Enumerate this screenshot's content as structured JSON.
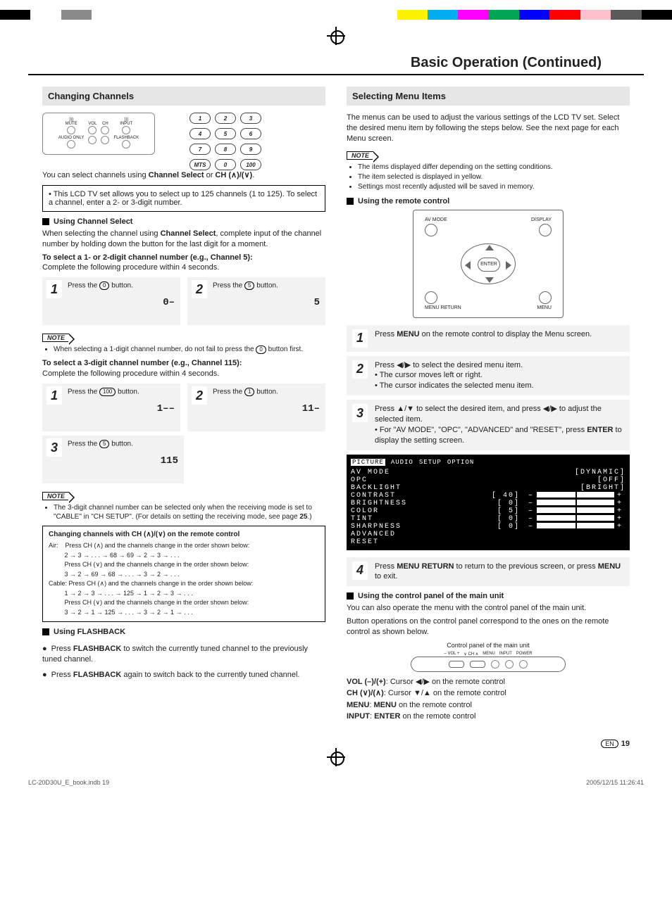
{
  "colorbar": [
    "#000000",
    "#ffffff",
    "#8a8a8a",
    "#ffffff",
    "#ffffff",
    "#ffffff",
    "#ffffff",
    "#ffffff",
    "#ffffff",
    "#ffffff",
    "#ffffff",
    "#ffffff",
    "#ffffff",
    "#fff200",
    "#00aeef",
    "#ff00ff",
    "#00a651",
    "#0000ff",
    "#ff0000",
    "#ffc0cb",
    "#5a5a5a",
    "#000000"
  ],
  "page_title": "Basic Operation (Continued)",
  "left": {
    "section": "Changing Channels",
    "panel_labels": [
      "MUTE",
      "VOL",
      "CH",
      "INPUT",
      "AUDIO ONLY",
      "FLASHBACK"
    ],
    "keypad": [
      "1",
      "2",
      "3",
      "4",
      "5",
      "6",
      "7",
      "8",
      "9",
      "MTS",
      "0",
      "100"
    ],
    "intro_a": "You can select channels using ",
    "intro_b": "Channel Select",
    "intro_c": " or ",
    "intro_d": "CH (∧)/(∨)",
    "intro_e": ".",
    "box1": "•  This LCD TV set allows you to select up to 125 channels (1 to 125). To select a channel, enter a 2- or 3-digit number.",
    "h_use_select": "Using Channel Select",
    "p_use_select": "When selecting the channel using Channel Select, complete input of the channel number by holding down the button for the last digit for a moment.",
    "h_12": "To select a 1- or 2-digit channel number (e.g., Channel 5):",
    "p_12": "Complete the following procedure within 4 seconds.",
    "step12": [
      {
        "n": "1",
        "t": "Press the ⓪ button.",
        "d": "0–"
      },
      {
        "n": "2",
        "t": "Press the ⑤ button.",
        "d": "5"
      }
    ],
    "note1": "NOTE",
    "note1_li": "When selecting a 1-digit channel number, do not fail to press the ⓪ button first.",
    "h_3": "To select a 3-digit channel number (e.g., Channel 115):",
    "p_3": "Complete the following procedure within 4 seconds.",
    "step3a": [
      {
        "n": "1",
        "t": "Press the (100) button.",
        "d": "1––"
      },
      {
        "n": "2",
        "t": "Press the ① button.",
        "d": "11–"
      }
    ],
    "step3b": [
      {
        "n": "3",
        "t": "Press the ⑤ button.",
        "d": "115"
      }
    ],
    "note2": "NOTE",
    "note2_li": "The 3-digit channel number can be selected only when the receiving mode is set to \"CABLE\" in \"CH SETUP\". (For details on setting the receiving mode, see page 25.)",
    "chbox_title": "Changing channels with CH (∧)/(∨) on the remote control",
    "chbox_lines": [
      "Air:    Press CH (∧) and the channels change in the order shown below:",
      "         2 → 3 → . . . → 68 → 69 → 2 → 3 → . . .",
      "         Press CH (∨) and the channels change in the order shown below:",
      "         3 → 2 → 69 → 68 → . . . → 3 → 2 → . . .",
      "Cable: Press CH (∧) and the channels change in the order shown below:",
      "         1 → 2 → 3 → . . . → 125 → 1 → 2 → 3 → . . .",
      "         Press CH (∨) and the channels change in the order shown below:",
      "         3 → 2 → 1 → 125 → . . . → 3 → 2 → 1 → . . ."
    ],
    "h_flash": "Using FLASHBACK",
    "flash_li": [
      "Press FLASHBACK to switch the currently tuned channel to the previously tuned channel.",
      "Press FLASHBACK again to switch back to the currently tuned channel."
    ]
  },
  "right": {
    "section": "Selecting Menu Items",
    "intro": "The menus can be used to adjust the various settings of the LCD TV set. Select the desired menu item by following the steps below. See the next page for each Menu screen.",
    "note": "NOTE",
    "note_li": [
      "The items displayed differ depending on the setting conditions.",
      "The item selected is displayed in yellow.",
      "Settings most recently adjusted will be saved in memory."
    ],
    "h_remote": "Using the remote control",
    "remote_labels": {
      "tl": "AV MODE",
      "tr": "DISPLAY",
      "bl": "MENU RETURN",
      "br": "MENU",
      "enter": "ENTER"
    },
    "steps": [
      {
        "n": "1",
        "t": "Press MENU on the remote control to display the Menu screen."
      },
      {
        "n": "2",
        "t": "Press ◀/▶ to select the desired menu item.\n• The cursor moves left or right.\n• The cursor indicates the selected menu item."
      },
      {
        "n": "3",
        "t": "Press ▲/▼ to select the desired item, and press ◀/▶ to adjust the selected item.\n• For \"AV MODE\", \"OPC\", \"ADVANCED\" and \"RESET\", press ENTER to display the setting screen."
      }
    ],
    "osd": {
      "tabs": [
        "PICTURE",
        "AUDIO",
        "SETUP",
        "OPTION"
      ],
      "rows": [
        {
          "l": "AV MODE",
          "v": "[DYNAMIC]"
        },
        {
          "l": "OPC",
          "v": "[OFF]"
        },
        {
          "l": "BACKLIGHT",
          "v": "[BRIGHT]"
        },
        {
          "l": "CONTRAST",
          "v": "[  40]",
          "bar": true
        },
        {
          "l": "BRIGHTNESS",
          "v": "[   0]",
          "bar": true
        },
        {
          "l": "COLOR",
          "v": "[   5]",
          "bar": true
        },
        {
          "l": "TINT",
          "v": "[   0]",
          "bar": true
        },
        {
          "l": "SHARPNESS",
          "v": "[   0]",
          "bar": true
        },
        {
          "l": "ADVANCED",
          "v": ""
        },
        {
          "l": "RESET",
          "v": ""
        }
      ]
    },
    "step4": {
      "n": "4",
      "t": "Press MENU RETURN to return to the previous screen, or press MENU to exit."
    },
    "h_panel": "Using the control panel of the main unit",
    "p_panel1": "You can also operate the menu with the control panel of the main unit.",
    "p_panel2": "Button operations on the control panel correspond to the ones on the remote control as shown below.",
    "cp_caption": "Control panel of the main unit",
    "cp_labels": [
      "– VOL +",
      "∨ CH ∧",
      "MENU",
      "INPUT",
      "POWER"
    ],
    "map": [
      "VOL (–)/(+): Cursor ◀/▶ on the remote control",
      "CH (∨)/(∧): Cursor ▼/▲ on the remote control",
      "MENU: MENU on the remote control",
      "INPUT: ENTER on the remote control"
    ]
  },
  "pagenum": "19",
  "footer_left": "LC-20D30U_E_book.indb   19",
  "footer_right": "2005/12/15   11:26:41"
}
